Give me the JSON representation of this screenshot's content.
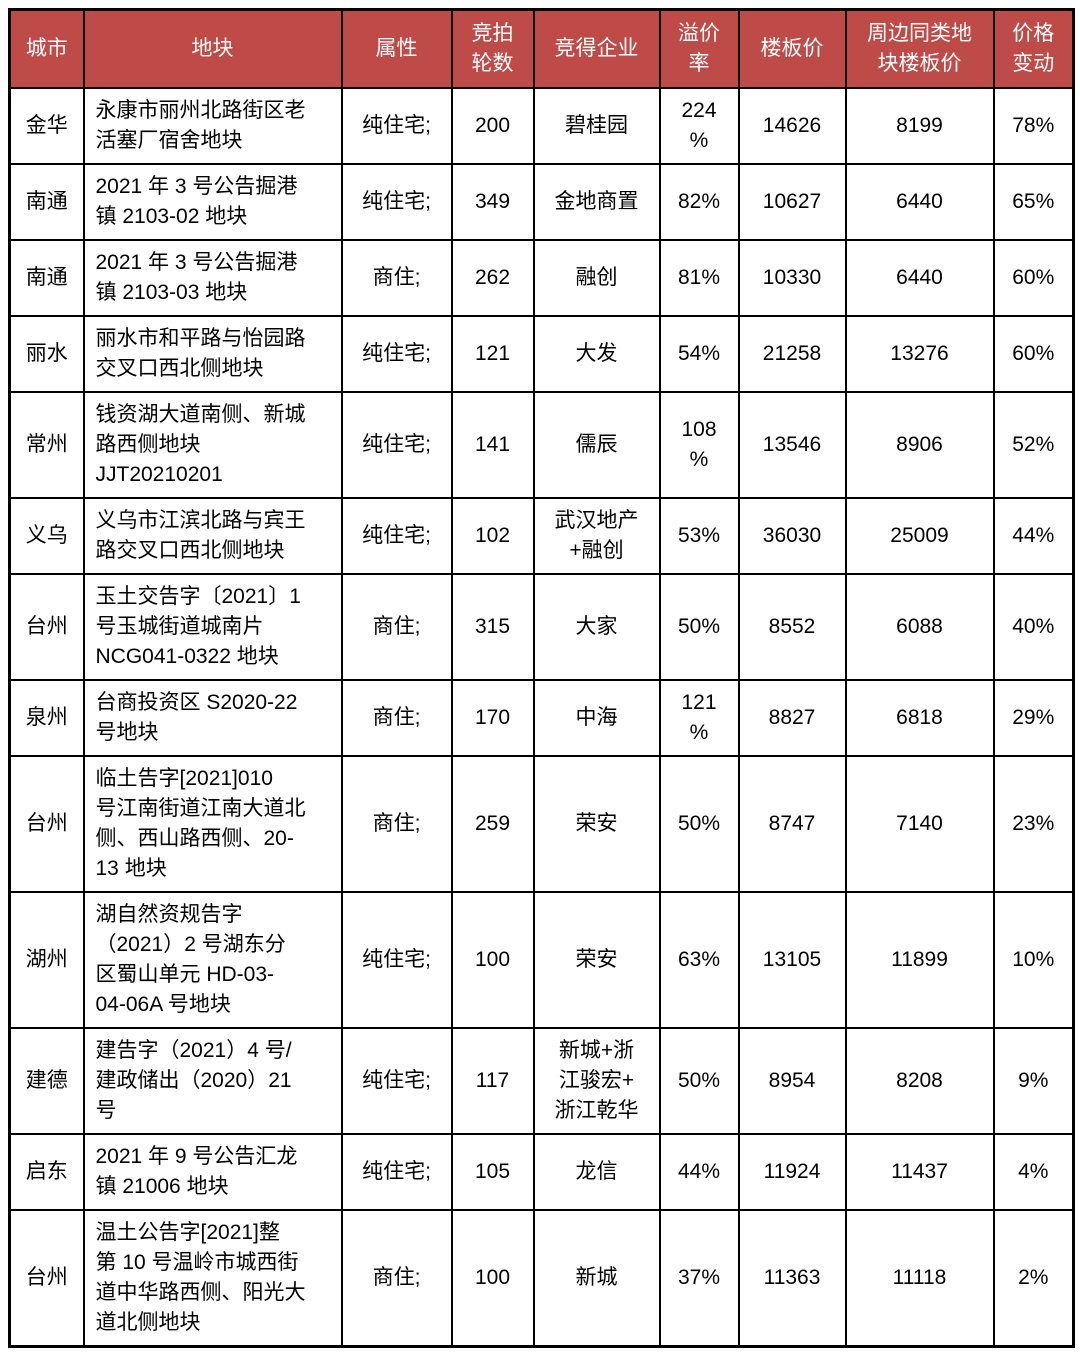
{
  "colors": {
    "header_bg": "#BE4B48",
    "header_text": "#FFFFFF",
    "border": "#000000",
    "body_text": "#000000",
    "page_bg": "#FFFFFF"
  },
  "table": {
    "header": {
      "columns": [
        {
          "id": "city",
          "label": "城市"
        },
        {
          "id": "parcel",
          "label": "地块"
        },
        {
          "id": "attribute",
          "label": "属性"
        },
        {
          "id": "rounds",
          "label": "竞拍\n轮数"
        },
        {
          "id": "winner",
          "label": "竞得企业"
        },
        {
          "id": "premium",
          "label": "溢价\n率"
        },
        {
          "id": "floor_price",
          "label": "楼板价"
        },
        {
          "id": "nearby_floor_price",
          "label": "周边同类地\n块楼板价"
        },
        {
          "id": "price_change",
          "label": "价格\n变动"
        }
      ]
    },
    "rows": [
      {
        "city": "金华",
        "parcel": "永康市丽州北路街区老\n活塞厂宿舍地块",
        "attribute": "纯住宅;",
        "rounds": "200",
        "winner": "碧桂园",
        "premium": "224\n%",
        "floor_price": "14626",
        "nearby_floor_price": "8199",
        "price_change": "78%"
      },
      {
        "city": "南通",
        "parcel": "2021 年 3 号公告掘港\n镇 2103-02 地块",
        "attribute": "纯住宅;",
        "rounds": "349",
        "winner": "金地商置",
        "premium": "82%",
        "floor_price": "10627",
        "nearby_floor_price": "6440",
        "price_change": "65%"
      },
      {
        "city": "南通",
        "parcel": "2021 年 3 号公告掘港\n镇 2103-03 地块",
        "attribute": "商住;",
        "rounds": "262",
        "winner": "融创",
        "premium": "81%",
        "floor_price": "10330",
        "nearby_floor_price": "6440",
        "price_change": "60%"
      },
      {
        "city": "丽水",
        "parcel": "丽水市和平路与怡园路\n交叉口西北侧地块",
        "attribute": "纯住宅;",
        "rounds": "121",
        "winner": "大发",
        "premium": "54%",
        "floor_price": "21258",
        "nearby_floor_price": "13276",
        "price_change": "60%"
      },
      {
        "city": "常州",
        "parcel": "钱资湖大道南侧、新城\n路西侧地块\nJJT20210201",
        "attribute": "纯住宅;",
        "rounds": "141",
        "winner": "儒辰",
        "premium": "108\n%",
        "floor_price": "13546",
        "nearby_floor_price": "8906",
        "price_change": "52%"
      },
      {
        "city": "义乌",
        "parcel": "义乌市江滨北路与宾王\n路交叉口西北侧地块",
        "attribute": "纯住宅;",
        "rounds": "102",
        "winner": "武汉地产\n+融创",
        "premium": "53%",
        "floor_price": "36030",
        "nearby_floor_price": "25009",
        "price_change": "44%"
      },
      {
        "city": "台州",
        "parcel": "玉土交告字〔2021〕1\n号玉城街道城南片\nNCG041-0322 地块",
        "attribute": "商住;",
        "rounds": "315",
        "winner": "大家",
        "premium": "50%",
        "floor_price": "8552",
        "nearby_floor_price": "6088",
        "price_change": "40%"
      },
      {
        "city": "泉州",
        "parcel": "台商投资区 S2020-22\n号地块",
        "attribute": "商住;",
        "rounds": "170",
        "winner": "中海",
        "premium": "121\n%",
        "floor_price": "8827",
        "nearby_floor_price": "6818",
        "price_change": "29%"
      },
      {
        "city": "台州",
        "parcel": "临土告字[2021]010\n号江南街道江南大道北\n侧、西山路西侧、20-\n13 地块",
        "attribute": "商住;",
        "rounds": "259",
        "winner": "荣安",
        "premium": "50%",
        "floor_price": "8747",
        "nearby_floor_price": "7140",
        "price_change": "23%"
      },
      {
        "city": "湖州",
        "parcel": "湖自然资规告字\n（2021）2 号湖东分\n区蜀山单元 HD-03-\n04-06A 号地块",
        "attribute": "纯住宅;",
        "rounds": "100",
        "winner": "荣安",
        "premium": "63%",
        "floor_price": "13105",
        "nearby_floor_price": "11899",
        "price_change": "10%"
      },
      {
        "city": "建德",
        "parcel": "建告字（2021）4 号/\n建政储出（2020）21\n号",
        "attribute": "纯住宅;",
        "rounds": "117",
        "winner": "新城+浙\n江骏宏+\n浙江乾华",
        "premium": "50%",
        "floor_price": "8954",
        "nearby_floor_price": "8208",
        "price_change": "9%"
      },
      {
        "city": "启东",
        "parcel": "2021 年 9 号公告汇龙\n镇 21006 地块",
        "attribute": "纯住宅;",
        "rounds": "105",
        "winner": "龙信",
        "premium": "44%",
        "floor_price": "11924",
        "nearby_floor_price": "11437",
        "price_change": "4%"
      },
      {
        "city": "台州",
        "parcel": "温土公告字[2021]整\n第 10 号温岭市城西街\n道中华路西侧、阳光大\n道北侧地块",
        "attribute": "商住;",
        "rounds": "100",
        "winner": "新城",
        "premium": "37%",
        "floor_price": "11363",
        "nearby_floor_price": "11118",
        "price_change": "2%"
      }
    ]
  }
}
